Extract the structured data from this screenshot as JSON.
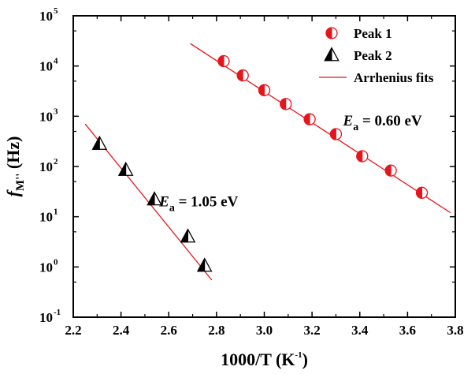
{
  "chart_data": {
    "type": "scatter",
    "xlabel": "1000/T (K",
    "xlabel_sup": "-1",
    "xlabel_end": ")",
    "ylabel_main": "f",
    "ylabel_sub": "M''",
    "ylabel_end": " (Hz)",
    "xlim": [
      2.2,
      3.8
    ],
    "ylim_log10": [
      -1,
      5
    ],
    "y_scale": "log",
    "x_ticks": [
      "2.2",
      "2.4",
      "2.6",
      "2.8",
      "3.0",
      "3.2",
      "3.4",
      "3.6",
      "3.8"
    ],
    "y_tick_exponents": [
      "-1",
      "0",
      "1",
      "2",
      "3",
      "4",
      "5"
    ],
    "y_tick_base": "10",
    "legend_position": "top-right",
    "accent_color": "#e8141b",
    "series": [
      {
        "name": "Peak 1",
        "marker": "half-filled-circle",
        "color": "#e8141b",
        "x": [
          2.83,
          2.91,
          3.0,
          3.09,
          3.19,
          3.3,
          3.41,
          3.53,
          3.66
        ],
        "y": [
          12500,
          6500,
          3300,
          1750,
          870,
          440,
          160,
          83,
          30
        ]
      },
      {
        "name": "Peak 2",
        "marker": "half-filled-triangle",
        "color": "#000000",
        "x": [
          2.31,
          2.42,
          2.54,
          2.68,
          2.75
        ],
        "y": [
          280,
          85,
          22,
          4.0,
          1.05
        ]
      }
    ],
    "fits": {
      "name": "Arrhenius fits",
      "color": "#e8141b",
      "lines": [
        {
          "x": [
            2.69,
            3.78
          ],
          "y": [
            28000,
            12
          ]
        },
        {
          "x": [
            2.25,
            2.78
          ],
          "y": [
            700,
            0.55
          ]
        }
      ]
    },
    "annotations": [
      {
        "id": "ea1",
        "symbol": "E",
        "sub": "a",
        "text": " = 0.60 eV",
        "x": 3.33,
        "y": 650
      },
      {
        "id": "ea2",
        "symbol": "E",
        "sub": "a",
        "text": " = 1.05 eV",
        "x": 2.56,
        "y": 16
      }
    ]
  }
}
